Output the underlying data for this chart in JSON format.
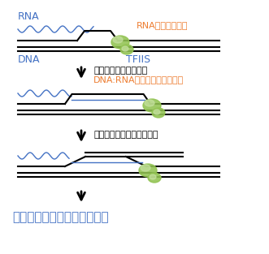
{
  "bg_color": "#ffffff",
  "blue_color": "#4472c4",
  "orange_color": "#ed7d31",
  "black_color": "#000000",
  "green_outer": "#92c352",
  "green_inner": "#c5e0a0",
  "text_rna": "RNA",
  "text_rnap": "RNAポリメラーゼ",
  "text_dna": "DNA",
  "text_tfiis": "TFIIS",
  "text_step1": "染色体結合因子の解離",
  "text_step1b": "DNA:RNAハイブリッドの形成",
  "text_step2": "反復配列どうしの相互作用",
  "text_final": "反復配列を介した染色体異常",
  "figsize": [
    3.31,
    3.13
  ],
  "dpi": 100
}
